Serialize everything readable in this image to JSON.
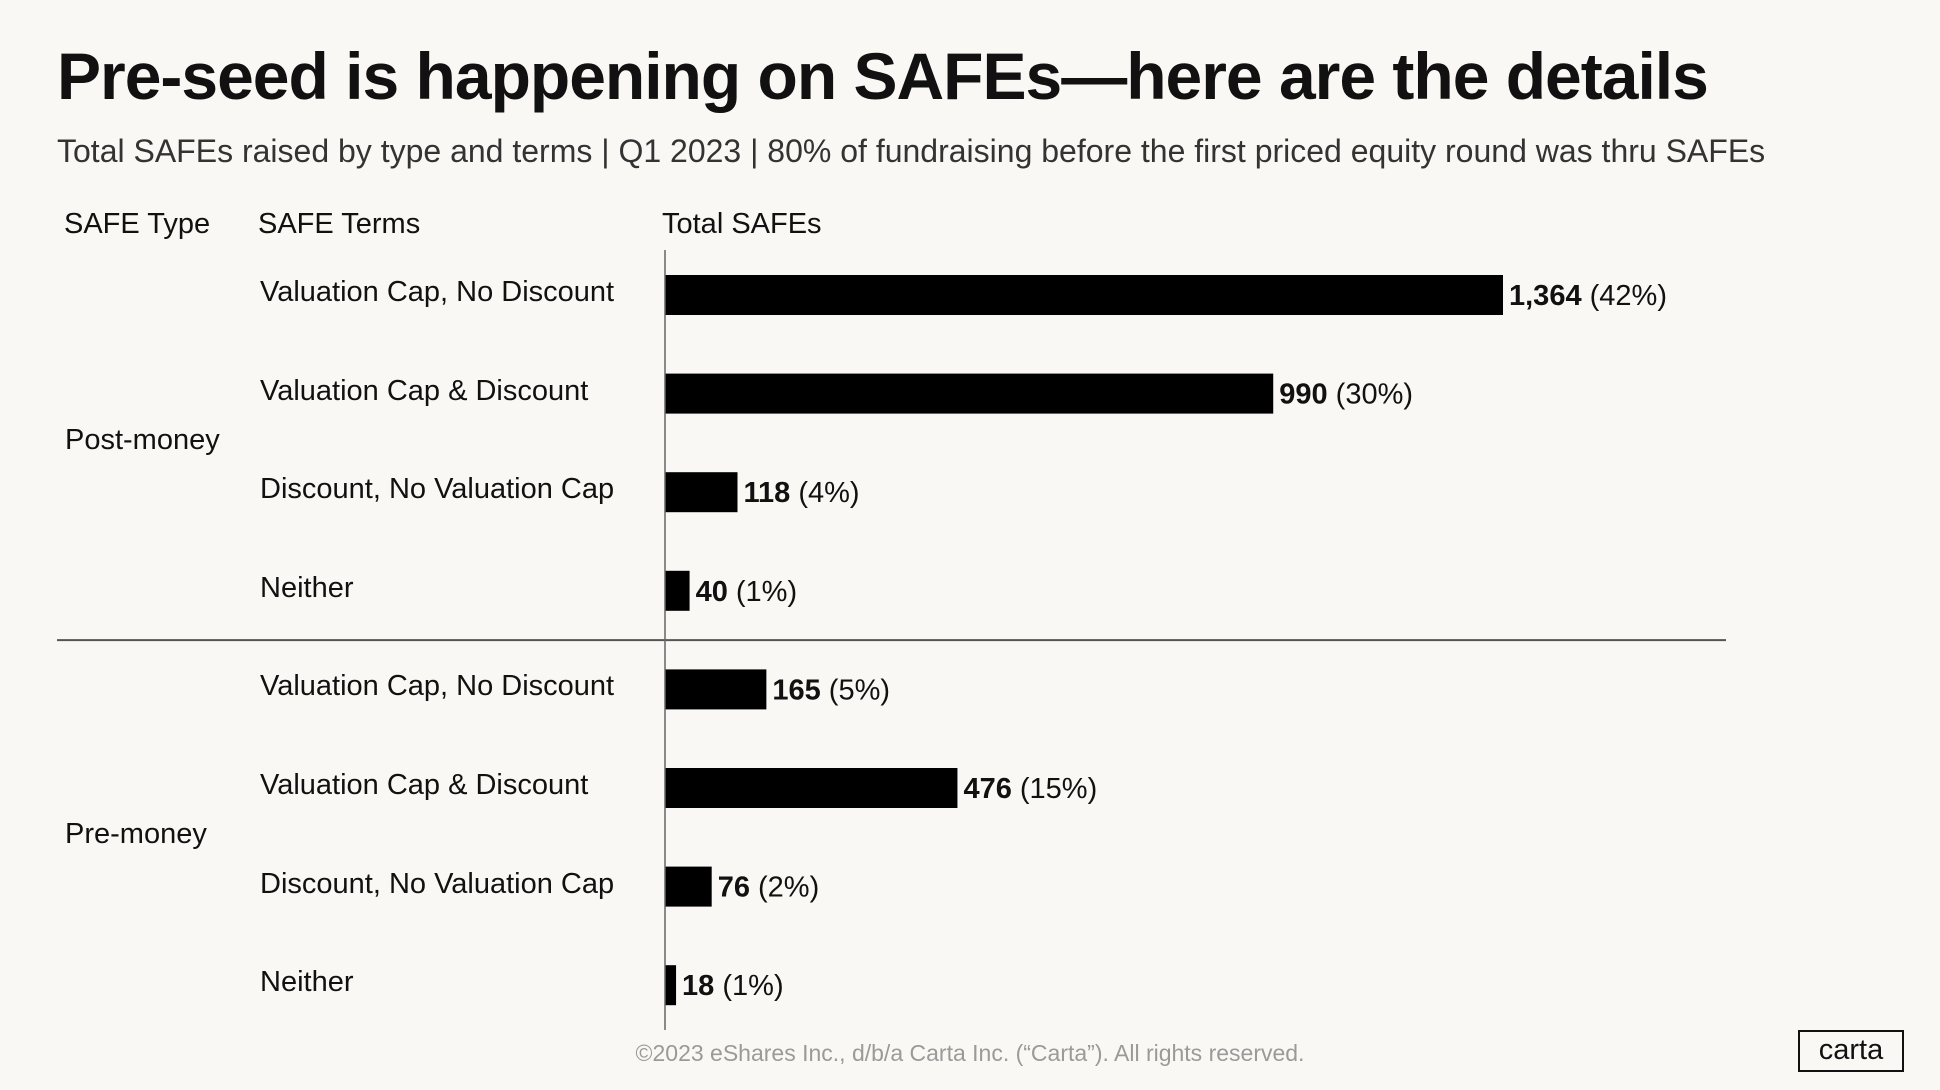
{
  "title": "Pre-seed is happening on SAFEs—here are the details",
  "subtitle": "Total SAFEs raised by type and terms  |  Q1 2023  |  80% of fundraising before the first priced equity round was thru SAFEs",
  "headers": {
    "type": "SAFE Type",
    "terms": "SAFE Terms",
    "total": "Total SAFEs"
  },
  "chart_data": {
    "type": "bar",
    "orientation": "horizontal",
    "groups": [
      {
        "name": "Post-money",
        "rows": [
          {
            "label": "Valuation Cap, No Discount",
            "value": 1364,
            "value_label": "1,364",
            "pct_label": "(42%)"
          },
          {
            "label": "Valuation Cap & Discount",
            "value": 990,
            "value_label": "990",
            "pct_label": "(30%)"
          },
          {
            "label": "Discount, No Valuation Cap",
            "value": 118,
            "value_label": "118",
            "pct_label": "(4%)"
          },
          {
            "label": "Neither",
            "value": 40,
            "value_label": "40",
            "pct_label": "(1%)"
          }
        ]
      },
      {
        "name": "Pre-money",
        "rows": [
          {
            "label": "Valuation Cap, No Discount",
            "value": 165,
            "value_label": "165",
            "pct_label": "(5%)"
          },
          {
            "label": "Valuation Cap & Discount",
            "value": 476,
            "value_label": "476",
            "pct_label": "(15%)"
          },
          {
            "label": "Discount, No Valuation Cap",
            "value": 76,
            "value_label": "76",
            "pct_label": "(2%)"
          },
          {
            "label": "Neither",
            "value": 18,
            "value_label": "18",
            "pct_label": "(1%)"
          }
        ]
      }
    ],
    "bar_color": "#000000",
    "grid": false
  },
  "footer": "©2023 eShares Inc., d/b/a Carta Inc. (“Carta”). All rights reserved.",
  "logo": "carta"
}
